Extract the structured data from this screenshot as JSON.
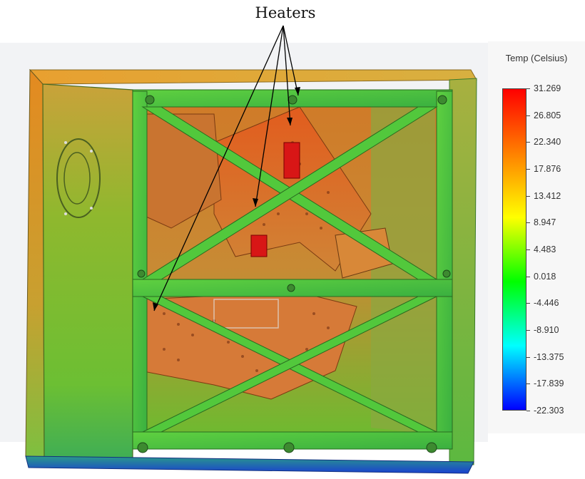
{
  "annotation": {
    "label": "Heaters"
  },
  "legend": {
    "title": "Temp (Celsius)",
    "values": [
      "31.269",
      "26.805",
      "22.340",
      "17.876",
      "13.412",
      "8.947",
      "4.483",
      "0.018",
      "-4.446",
      "-8.910",
      "-13.375",
      "-17.839",
      "-22.303"
    ],
    "color_stops": [
      "#ff0000",
      "#ff8000",
      "#ffff00",
      "#00ff00",
      "#00ffff",
      "#0000ff"
    ]
  },
  "model_colors": {
    "frame": "#4fc83a",
    "panel_left": "#7dbb2c",
    "plate": "#d66a2a",
    "heater": "#e01818",
    "base": "#2050d8"
  }
}
